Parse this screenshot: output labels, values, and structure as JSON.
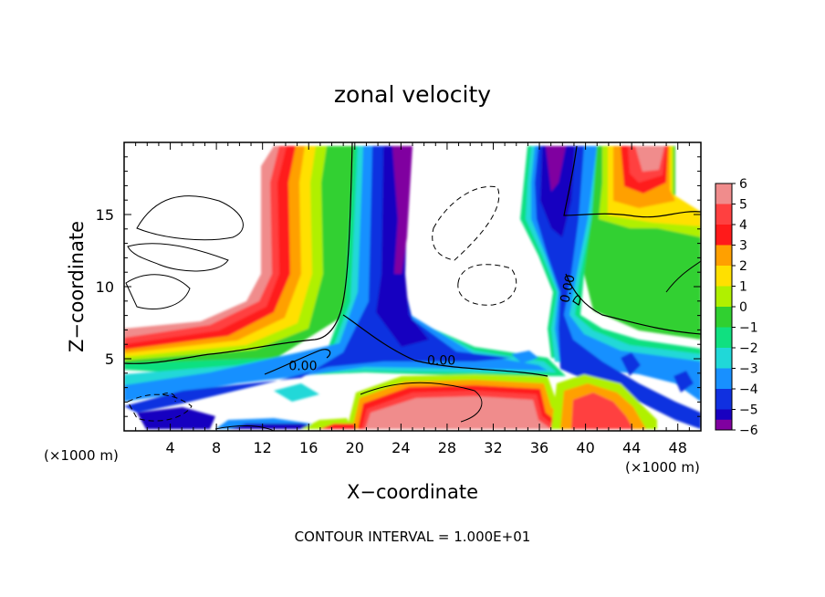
{
  "chart_data": {
    "type": "heatmap",
    "title": "zonal velocity",
    "xlabel": "X−coordinate",
    "ylabel": "Z−coordinate",
    "x_unit_left": "(×1000 m)",
    "x_unit_right": "(×1000 m)",
    "footer": "CONTOUR INTERVAL = 1.000E+01",
    "xlim": [
      0,
      50
    ],
    "ylim": [
      0,
      20
    ],
    "x_ticks": [
      4,
      8,
      12,
      16,
      20,
      24,
      28,
      32,
      36,
      40,
      44,
      48
    ],
    "y_ticks": [
      5,
      10,
      15
    ],
    "contour_labels": [
      {
        "text": "0.00",
        "x": 15.5,
        "y": 4.2
      },
      {
        "text": "0.00",
        "x": 27.5,
        "y": 4.6
      },
      {
        "text": "0.00",
        "x": 38.8,
        "y": 9.8,
        "rotation": -78
      }
    ],
    "colorbar": {
      "levels": [
        6,
        5,
        4,
        3,
        2,
        1,
        0,
        -1,
        -2,
        -3,
        -4,
        -5,
        -6
      ],
      "labels": [
        "6",
        "5",
        "4",
        "3",
        "2",
        "1",
        "0",
        "−1",
        "−2",
        "−3",
        "−4",
        "−5",
        "−6"
      ],
      "colors": [
        "#f08c8c",
        "#ff4040",
        "#ff1a1a",
        "#ffa000",
        "#ffe000",
        "#b0f000",
        "#30d030",
        "#10e080",
        "#20d8d8",
        "#1890ff",
        "#1030e0",
        "#1800c0",
        "#8000a0"
      ]
    }
  }
}
